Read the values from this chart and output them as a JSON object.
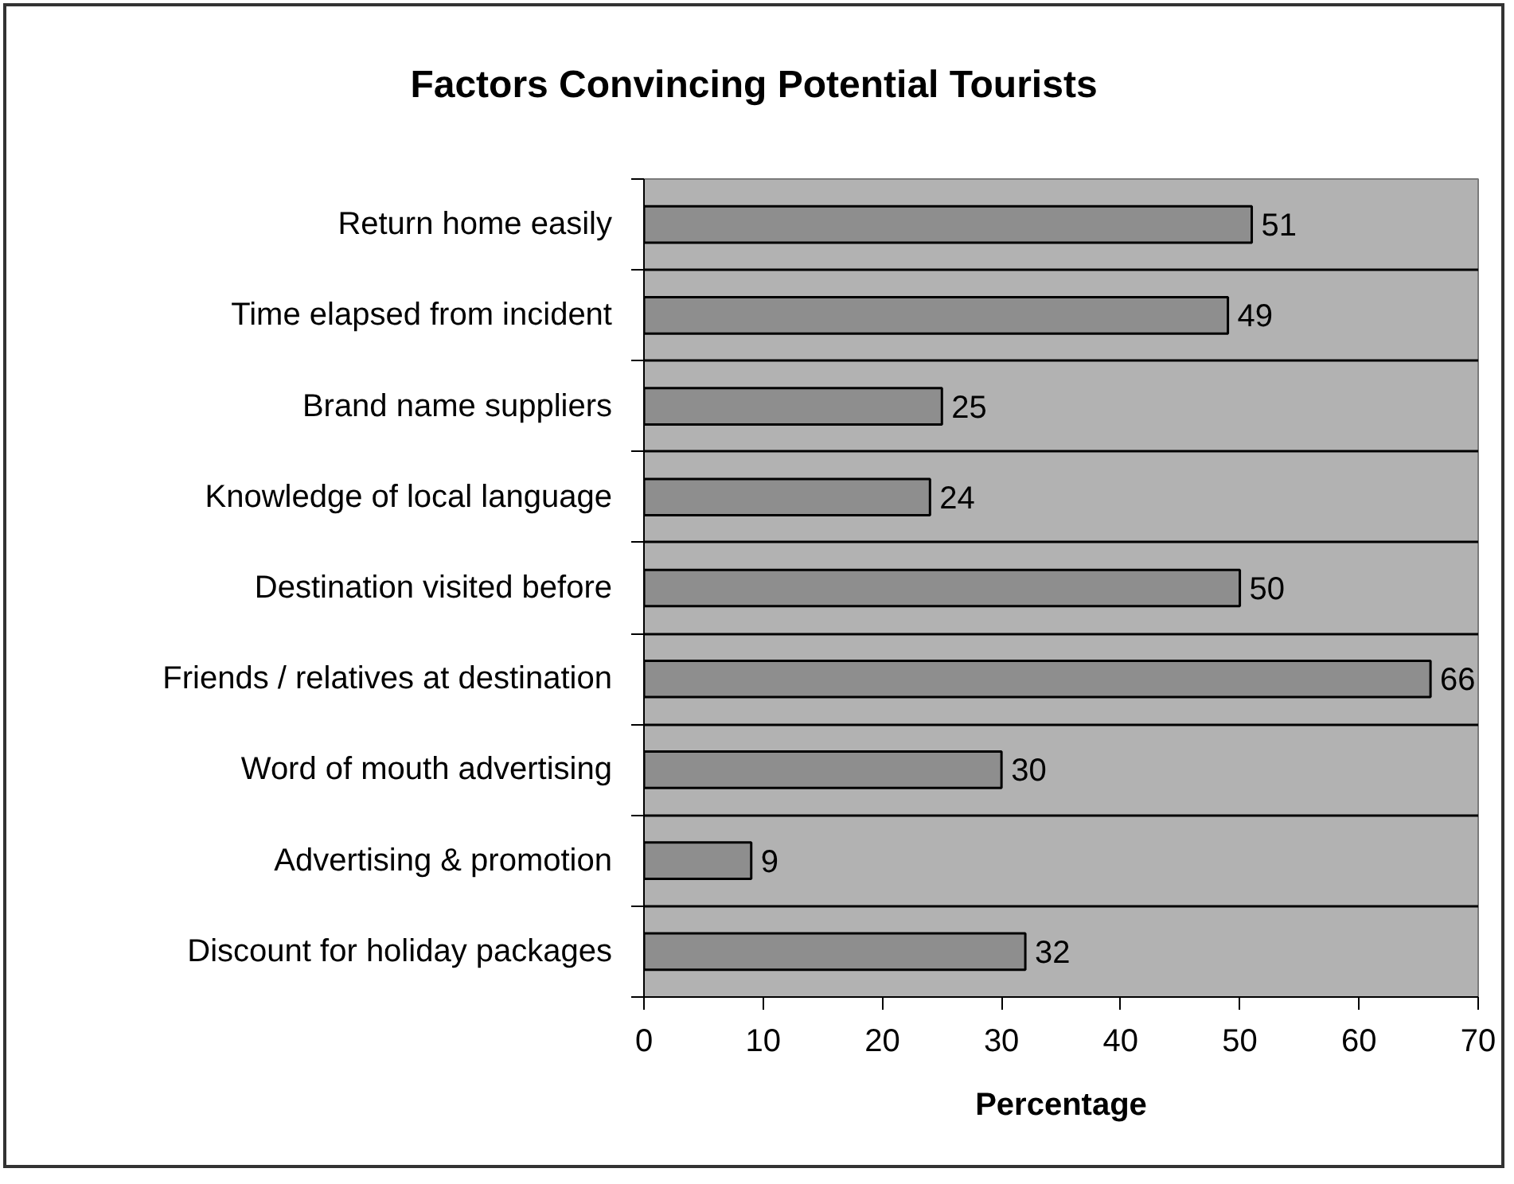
{
  "chart_data": {
    "type": "bar",
    "orientation": "horizontal",
    "title": "Factors Convincing Potential Tourists",
    "xlabel": "Percentage",
    "categories": [
      "Return home easily",
      "Time elapsed from incident",
      "Brand name suppliers",
      "Knowledge of local language",
      "Destination visited before",
      "Friends / relatives at destination",
      "Word of mouth advertising",
      "Advertising & promotion",
      "Discount for holiday packages"
    ],
    "values": [
      51,
      49,
      25,
      24,
      50,
      66,
      30,
      9,
      32
    ],
    "color": "#8e8e8e",
    "xlim": [
      0,
      70
    ],
    "xticks": [
      0,
      10,
      20,
      30,
      40,
      50,
      60,
      70
    ],
    "grid": "y",
    "data_labels": true
  }
}
